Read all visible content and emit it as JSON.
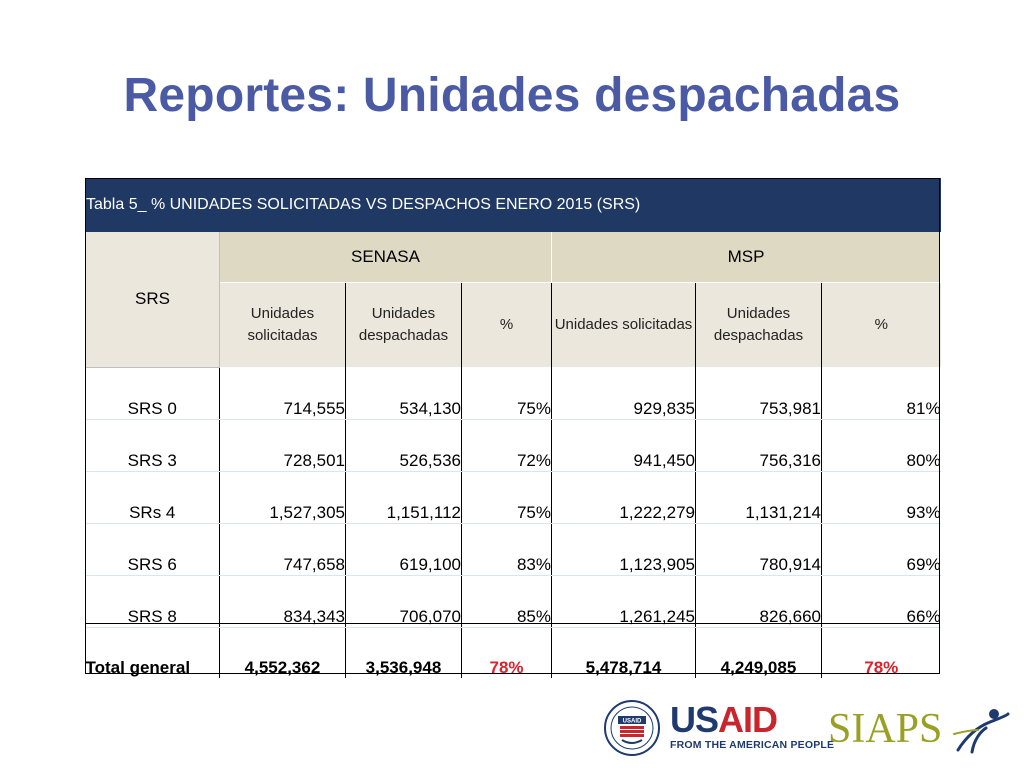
{
  "slide": {
    "title": "Reportes: Unidades despachadas"
  },
  "table": {
    "caption": "Tabla 5_ % UNIDADES SOLICITADAS VS DESPACHOS ENERO 2015 (SRS)",
    "row_header": "SRS",
    "groups": [
      "SENASA",
      "MSP"
    ],
    "sub_headers": [
      "Unidades solicitadas",
      "Unidades despachadas",
      "%",
      "Unidades solicitadas",
      "Unidades despachadas",
      "%"
    ],
    "rows": [
      {
        "label": "SRS 0",
        "cells": [
          "714,555",
          "534,130",
          "75%",
          "929,835",
          "753,981",
          "81%"
        ]
      },
      {
        "label": "SRS 3",
        "cells": [
          "728,501",
          "526,536",
          "72%",
          "941,450",
          "756,316",
          "80%"
        ]
      },
      {
        "label": "SRs 4",
        "cells": [
          "1,527,305",
          "1,151,112",
          "75%",
          "1,222,279",
          "1,131,214",
          "93%"
        ]
      },
      {
        "label": "SRS 6",
        "cells": [
          "747,658",
          "619,100",
          "83%",
          "1,123,905",
          "780,914",
          "69%"
        ]
      },
      {
        "label": "SRS 8",
        "cells": [
          "834,343",
          "706,070",
          "85%",
          "1,261,245",
          "826,660",
          "66%"
        ]
      }
    ],
    "total": {
      "label": "Total general",
      "cells": [
        "4,552,362",
        "3,536,948",
        "78%",
        "5,478,714",
        "4,249,085",
        "78%"
      ]
    }
  },
  "logos": {
    "usaid": {
      "word_us": "US",
      "word_aid": "AID",
      "tagline": "FROM THE AMERICAN PEOPLE",
      "seal_text": "USAID"
    },
    "siaps": {
      "word": "SIAPS"
    }
  },
  "colors": {
    "title": "#4a5aa5",
    "caption_bg": "#1f3864",
    "group_header_bg": "#ddd9c3",
    "sub_header_bg": "#ebe7dd",
    "total_pct": "#e0202a",
    "usaid_blue": "#1f3a6e",
    "usaid_red": "#c9252c",
    "siaps_olive": "#9aa024"
  }
}
